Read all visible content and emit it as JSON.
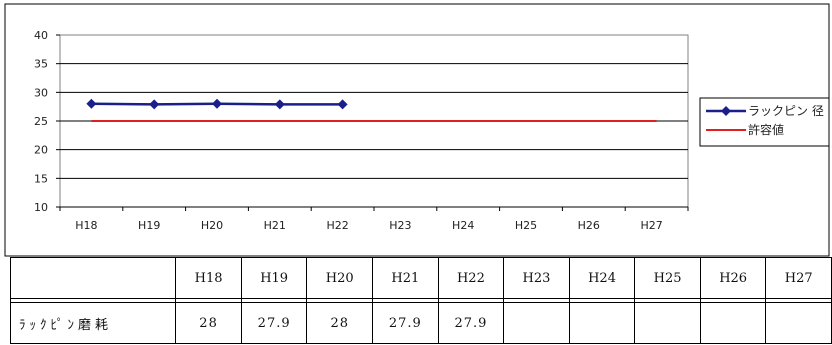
{
  "chart_data": {
    "type": "line",
    "categories": [
      "H18",
      "H19",
      "H20",
      "H21",
      "H22",
      "H23",
      "H24",
      "H25",
      "H26",
      "H27"
    ],
    "ylim": [
      10,
      40
    ],
    "yticks": [
      10,
      15,
      20,
      25,
      30,
      35,
      40
    ],
    "grid": true,
    "legend_position": "right",
    "series": [
      {
        "name": "ラックピン 径",
        "values": [
          28,
          27.9,
          28,
          27.9,
          27.9,
          null,
          null,
          null,
          null,
          null
        ],
        "color": "#1a1f8a",
        "marker": "diamond"
      },
      {
        "name": "許容値",
        "values": [
          25,
          25,
          25,
          25,
          25,
          25,
          25,
          25,
          25,
          25
        ],
        "color": "#e02020",
        "marker": "none"
      }
    ]
  },
  "table": {
    "headers": [
      "H18",
      "H19",
      "H20",
      "H21",
      "H22",
      "H23",
      "H24",
      "H25",
      "H26",
      "H27"
    ],
    "row_label": "ﾗｯｸﾋﾟﾝ磨耗",
    "values": [
      "28",
      "27.9",
      "28",
      "27.9",
      "27.9",
      "",
      "",
      "",
      "",
      ""
    ]
  }
}
